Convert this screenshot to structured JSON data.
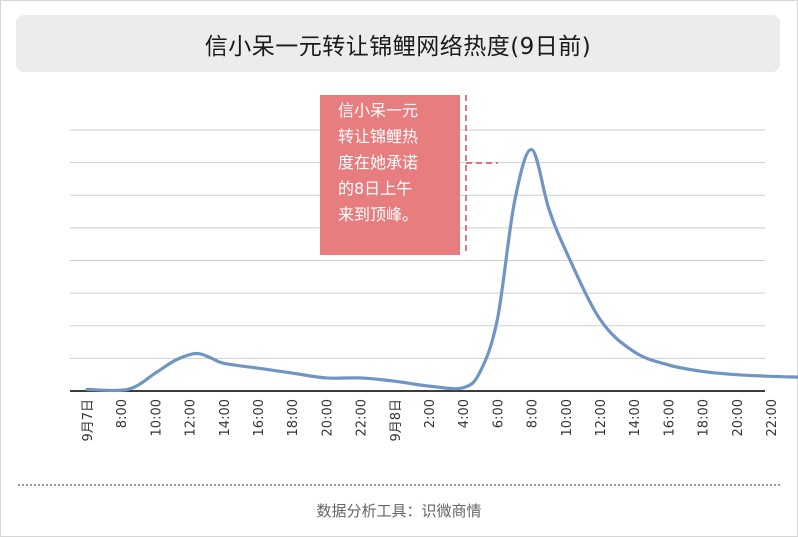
{
  "title": "信小呆一元转让锦鲤网络热度(9日前)",
  "footer": "数据分析工具：识微商情",
  "annotation": {
    "lines": [
      "信小呆一元",
      "转让锦鲤热",
      "度在她承诺",
      "的8日上午",
      "来到顶峰。"
    ]
  },
  "colors": {
    "line": "#6f95c4",
    "annotation_bg": "#e87d7f",
    "annotation_marker": "#e0465e",
    "grid": "#cfcfcf",
    "axis": "#3b3b3b"
  },
  "chart_data": {
    "type": "line",
    "title": "信小呆一元转让锦鲤网络热度(9日前)",
    "xlabel": "",
    "ylabel": "",
    "ylim": [
      0,
      8
    ],
    "grid": true,
    "y_tick_labels_shown": false,
    "x_tick_labels": [
      "9月7日",
      "8:00",
      "10:00",
      "12:00",
      "14:00",
      "16:00",
      "18:00",
      "20:00",
      "22:00",
      "9月8日",
      "2:00",
      "4:00",
      "6:00",
      "8:00",
      "10:00",
      "12:00",
      "14:00",
      "16:00",
      "18:00",
      "20:00",
      "22:00"
    ],
    "x": [
      0,
      1.2,
      2,
      2.6,
      3.2,
      3.65,
      4,
      5,
      6,
      7,
      8,
      9,
      10,
      11,
      11.5,
      12,
      12.5,
      13,
      13.5,
      14,
      15,
      16,
      17,
      18,
      19,
      20,
      21
    ],
    "series": [
      {
        "values": [
          0.05,
          0.05,
          0.55,
          0.95,
          1.15,
          1.0,
          0.85,
          0.7,
          0.55,
          0.4,
          0.4,
          0.3,
          0.15,
          0.1,
          0.6,
          2.2,
          5.8,
          7.4,
          5.6,
          4.3,
          2.2,
          1.2,
          0.8,
          0.6,
          0.5,
          0.45,
          0.42
        ]
      }
    ],
    "annotation": {
      "text": "信小呆一元转让锦鲤热度在她承诺的8日上午来到顶峰。"
    }
  }
}
